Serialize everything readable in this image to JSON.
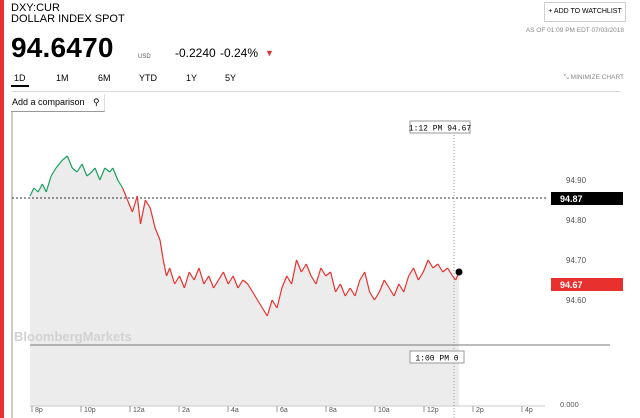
{
  "header": {
    "ticker": "DXY:CUR",
    "name": "DOLLAR INDEX SPOT",
    "watchlist_label": "+ ADD TO WATCHLIST",
    "as_of": "AS OF 01:09 PM EDT 07/03/2018",
    "price": "94.6470",
    "unit": "USD",
    "change": "-0.2240",
    "change_pct": "-0.24%",
    "arrow": "▼"
  },
  "tabs": [
    "1D",
    "1M",
    "6M",
    "YTD",
    "1Y",
    "5Y"
  ],
  "active_tab": "1D",
  "minimize_label": "MINIMIZE CHART",
  "compare_label": "Add a comparison",
  "colors": {
    "up": "#19a15f",
    "down": "#e8312f",
    "accent": "#e8312f",
    "fill": "#ececec"
  },
  "chart_data": {
    "type": "line",
    "watermark": "BloombergMarkets",
    "x_ticks": [
      "8p",
      "10p",
      "12a",
      "2a",
      "4a",
      "6a",
      "8a",
      "10a",
      "12p",
      "2p",
      "4p"
    ],
    "y_ticks": [
      "94.90",
      "94.80",
      "94.70",
      "94.60"
    ],
    "ylim": [
      94.53,
      94.95
    ],
    "previous_close": 94.87,
    "previous_close_label": "94.87",
    "last_value": 94.67,
    "last_label": "94.67",
    "crosshair_top": "1:12 PM  94.67",
    "crosshair_bottom": "1:00 PM  0",
    "volume_zero_label": "0.000",
    "series": [
      {
        "x": [
          0,
          0.12,
          0.25,
          0.38,
          0.5,
          0.65,
          0.8,
          1,
          1.15,
          1.3,
          1.45,
          1.6,
          1.75,
          1.9,
          2,
          2.15,
          2.3,
          2.45,
          2.55,
          2.7,
          2.85,
          3,
          3.15,
          3.3,
          3.4,
          3.55,
          3.7,
          3.85,
          4,
          4.1,
          4.2,
          4.3,
          4.45,
          4.6,
          4.75,
          4.9,
          5.05,
          5.2,
          5.35,
          5.5,
          5.65,
          5.8,
          5.95,
          6.1,
          6.25,
          6.4,
          6.55,
          6.7,
          6.85,
          7,
          7.15,
          7.3,
          7.45,
          7.6,
          7.75,
          7.9,
          8.05,
          8.2,
          8.35,
          8.5,
          8.65,
          8.8,
          8.95,
          9.1,
          9.25,
          9.4,
          9.55,
          9.7,
          9.85,
          10,
          10.15,
          10.3,
          10.45,
          10.6,
          10.75,
          10.9,
          11.05,
          11.2,
          11.35,
          11.5,
          11.65,
          11.8,
          11.95,
          12.1,
          12.25,
          12.4,
          12.55,
          12.7,
          12.85,
          13,
          13.1,
          13.2
        ],
        "y": [
          94.86,
          94.88,
          94.87,
          94.89,
          94.87,
          94.91,
          94.93,
          94.95,
          94.96,
          94.93,
          94.92,
          94.94,
          94.91,
          94.92,
          94.93,
          94.9,
          94.93,
          94.92,
          94.93,
          94.9,
          94.88,
          94.85,
          94.82,
          94.86,
          94.79,
          94.85,
          94.83,
          94.78,
          94.75,
          94.7,
          94.66,
          94.68,
          94.64,
          94.66,
          94.63,
          94.67,
          94.65,
          94.68,
          94.64,
          94.66,
          94.63,
          94.65,
          94.67,
          94.64,
          94.66,
          94.63,
          94.65,
          94.64,
          94.62,
          94.6,
          94.58,
          94.56,
          94.6,
          94.58,
          94.63,
          94.66,
          94.64,
          94.7,
          94.67,
          94.69,
          94.66,
          94.64,
          94.68,
          94.66,
          94.67,
          94.62,
          94.64,
          94.61,
          94.63,
          94.61,
          94.65,
          94.67,
          94.62,
          94.6,
          94.62,
          94.65,
          94.63,
          94.61,
          94.64,
          94.62,
          94.66,
          94.68,
          94.65,
          94.67,
          94.7,
          94.68,
          94.69,
          94.67,
          94.68,
          94.66,
          94.65,
          94.67
        ]
      }
    ]
  }
}
